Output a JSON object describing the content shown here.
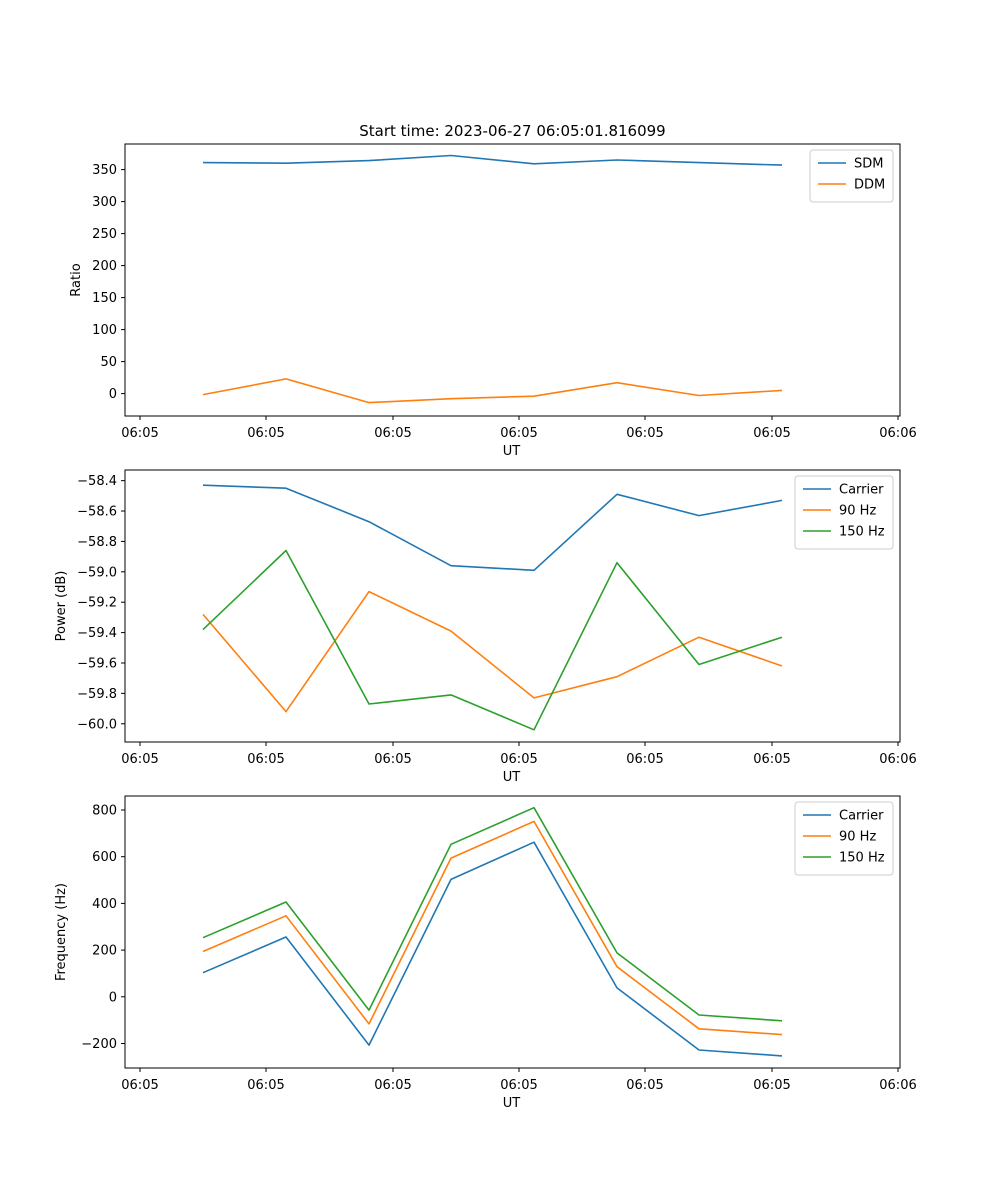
{
  "figure": {
    "title": "Start time: 2023-06-27 06:05:01.816099"
  },
  "colors": {
    "blue": "#1f77b4",
    "orange": "#ff7f0e",
    "green": "#2ca02c"
  },
  "chart_data": [
    {
      "type": "line",
      "title": "Start time: 2023-06-27 06:05:01.816099",
      "xlabel": "UT",
      "ylabel": "Ratio",
      "x_tick_labels": [
        "06:05",
        "06:05",
        "06:05",
        "06:05",
        "06:05",
        "06:05",
        "06:06"
      ],
      "y_ticks": [
        0,
        50,
        100,
        150,
        200,
        250,
        300,
        350
      ],
      "ylim": [
        -35,
        390
      ],
      "legend": "top-right",
      "grid": false,
      "series": [
        {
          "name": "SDM",
          "color": "#1f77b4",
          "values": [
            361,
            360,
            364,
            372,
            359,
            365,
            361,
            357
          ]
        },
        {
          "name": "DDM",
          "color": "#ff7f0e",
          "values": [
            -1.5,
            23,
            -14,
            -8,
            -4,
            17,
            -3,
            5
          ]
        }
      ]
    },
    {
      "type": "line",
      "title": "",
      "xlabel": "UT",
      "ylabel": "Power (dB)",
      "x_tick_labels": [
        "06:05",
        "06:05",
        "06:05",
        "06:05",
        "06:05",
        "06:05",
        "06:06"
      ],
      "y_ticks": [
        -60.0,
        -59.8,
        -59.6,
        -59.4,
        -59.2,
        -59.0,
        -58.8,
        -58.6,
        -58.4
      ],
      "ylim": [
        -60.12,
        -58.33
      ],
      "legend": "top-right",
      "grid": false,
      "series": [
        {
          "name": "Carrier",
          "color": "#1f77b4",
          "values": [
            -58.43,
            -58.45,
            -58.67,
            -58.96,
            -58.99,
            -58.49,
            -58.63,
            -58.53
          ]
        },
        {
          "name": "90 Hz",
          "color": "#ff7f0e",
          "values": [
            -59.28,
            -59.92,
            -59.13,
            -59.39,
            -59.83,
            -59.69,
            -59.43,
            -59.62
          ]
        },
        {
          "name": "150 Hz",
          "color": "#2ca02c",
          "values": [
            -59.38,
            -58.86,
            -59.87,
            -59.81,
            -60.04,
            -58.94,
            -59.61,
            -59.43
          ]
        }
      ]
    },
    {
      "type": "line",
      "title": "",
      "xlabel": "UT",
      "ylabel": "Frequency (Hz)",
      "x_tick_labels": [
        "06:05",
        "06:05",
        "06:05",
        "06:05",
        "06:05",
        "06:05",
        "06:06"
      ],
      "y_ticks": [
        -200,
        0,
        200,
        400,
        600,
        800
      ],
      "ylim": [
        -305,
        860
      ],
      "legend": "top-right",
      "grid": false,
      "series": [
        {
          "name": "Carrier",
          "color": "#1f77b4",
          "values": [
            103,
            256,
            -207,
            503,
            662,
            38,
            -228,
            -253
          ]
        },
        {
          "name": "90 Hz",
          "color": "#ff7f0e",
          "values": [
            194,
            347,
            -116,
            594,
            751,
            129,
            -137,
            -162
          ]
        },
        {
          "name": "150 Hz",
          "color": "#2ca02c",
          "values": [
            253,
            406,
            -57,
            653,
            810,
            188,
            -78,
            -103
          ]
        }
      ]
    }
  ]
}
